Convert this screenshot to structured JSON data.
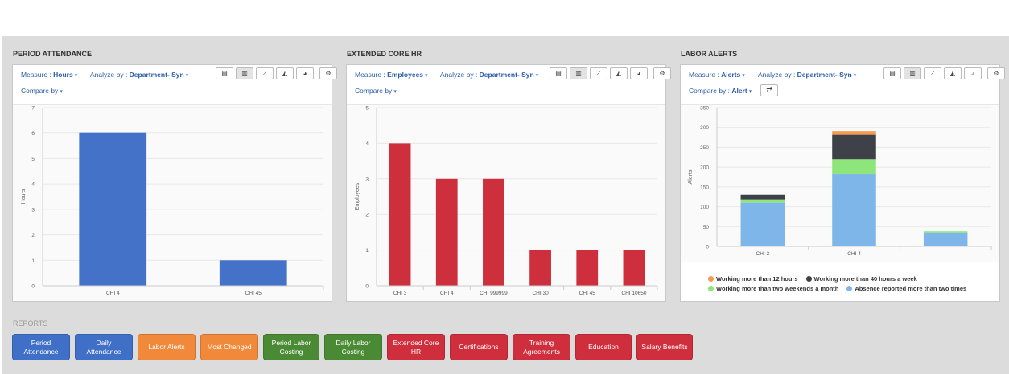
{
  "colors": {
    "blue_bar": "#4472c9",
    "red_bar": "#cd2f3c",
    "link": "#2a5ba8"
  },
  "panels": [
    {
      "title": "PERIOD ATTENDANCE",
      "measure_label": "Measure : ",
      "measure_value": "Hours",
      "analyze_label": "Analyze by : ",
      "analyze_value": "Department- Syn",
      "compare_label": "Compare by"
    },
    {
      "title": "EXTENDED CORE HR",
      "measure_label": "Measure : ",
      "measure_value": "Employees",
      "analyze_label": "Analyze by : ",
      "analyze_value": "Department- Syn",
      "compare_label": "Compare by"
    },
    {
      "title": "LABOR ALERTS",
      "measure_label": "Measure : ",
      "measure_value": "Alerts",
      "analyze_label": "Analyze by : ",
      "analyze_value": "Department- Syn",
      "compare_label": "Compare by : ",
      "compare_value": "Alert"
    }
  ],
  "toolbar_icons": [
    "export-icon",
    "bar-chart-icon",
    "line-chart-icon",
    "area-chart-icon",
    "pie-chart-icon",
    "settings-icon"
  ],
  "chart_data": [
    {
      "type": "bar",
      "title": "",
      "ylabel": "Hours",
      "ylim": [
        0,
        7
      ],
      "yticks": [
        0,
        1,
        2,
        3,
        4,
        5,
        6,
        7
      ],
      "categories": [
        "CHI 4",
        "CHI 45"
      ],
      "values": [
        6,
        1
      ],
      "color": "#4472c9"
    },
    {
      "type": "bar",
      "title": "",
      "ylabel": "Employees",
      "ylim": [
        0,
        5
      ],
      "yticks": [
        0,
        1,
        2,
        3,
        4,
        5
      ],
      "categories": [
        "CHI 3",
        "CHI 4",
        "CHI 999999",
        "CHI 30",
        "CHI 45",
        "CHI 10650"
      ],
      "values": [
        4,
        3,
        3,
        1,
        1,
        1
      ],
      "color": "#cd2f3c"
    },
    {
      "type": "bar",
      "stacked": true,
      "title": "",
      "ylabel": "Alerts",
      "ylim": [
        0,
        350
      ],
      "yticks": [
        0,
        50,
        100,
        150,
        200,
        250,
        300,
        350
      ],
      "categories": [
        "CHI 3",
        "CHI 4",
        ""
      ],
      "series": [
        {
          "name": "Absence reported more than two times",
          "color": "#7fb6ea",
          "values": [
            110,
            182,
            35
          ]
        },
        {
          "name": "Working more than two weekends a month",
          "color": "#8ee57c",
          "values": [
            8,
            38,
            3
          ]
        },
        {
          "name": "Working more than 40 hours a week",
          "color": "#3f4148",
          "values": [
            12,
            62,
            0
          ]
        },
        {
          "name": "Working more than 12 hours",
          "color": "#f59a4e",
          "values": [
            0,
            9,
            0
          ]
        }
      ],
      "legend": {
        "row1": [
          "Working more than 12 hours",
          "Working more than 40 hours a week"
        ],
        "row2": [
          "Working more than two weekends a month",
          "Absence reported more than two times"
        ]
      }
    }
  ],
  "reports": {
    "label": "REPORTS",
    "buttons": [
      {
        "label": "Period\nAttendance",
        "color": "#3f6fc6"
      },
      {
        "label": "Daily\nAttendance",
        "color": "#3f6fc6"
      },
      {
        "label": "Labor Alerts",
        "color": "#f08a3a"
      },
      {
        "label": "Most Changed",
        "color": "#f08a3a"
      },
      {
        "label": "Period Labor\nCosting",
        "color": "#4b8a35"
      },
      {
        "label": "Daily Labor\nCosting",
        "color": "#4b8a35"
      },
      {
        "label": "Extended Core\nHR",
        "color": "#cf2e3d"
      },
      {
        "label": "Certifications",
        "color": "#cf2e3d"
      },
      {
        "label": "Training\nAgreements",
        "color": "#cf2e3d"
      },
      {
        "label": "Education",
        "color": "#cf2e3d"
      },
      {
        "label": "Salary Benefits",
        "color": "#cf2e3d"
      }
    ]
  }
}
